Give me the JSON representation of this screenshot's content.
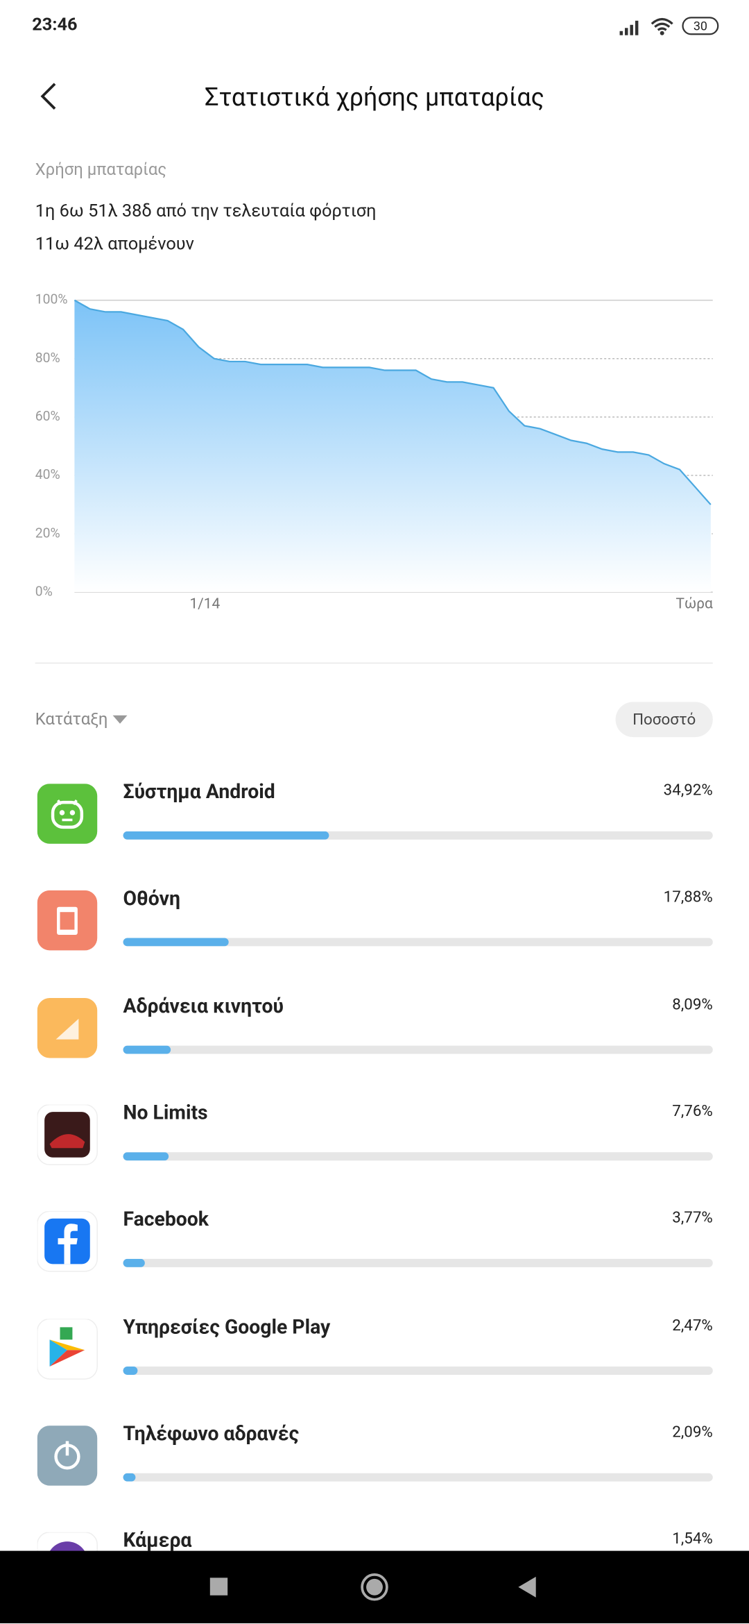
{
  "status_bar": {
    "time": "23:46",
    "battery": "30"
  },
  "header": {
    "title": "Στατιστικά χρήσης μπαταρίας"
  },
  "summary": {
    "label": "Χρήση μπαταρίας",
    "since_charge": "1η 6ω 51λ 38δ από την τελευταία φόρτιση",
    "remaining": "11ω 42λ απομένουν"
  },
  "chart_data": {
    "type": "area",
    "color": "#4aa8e0",
    "categories": [
      null,
      null,
      null,
      null,
      null,
      null,
      null,
      null,
      "1/14",
      null,
      null,
      null,
      null,
      null,
      null,
      null,
      null,
      null,
      null,
      null,
      null,
      null,
      null,
      null,
      null,
      null,
      null,
      null,
      null,
      null,
      null,
      null,
      null,
      null,
      null,
      null,
      null,
      null,
      null,
      null,
      null,
      "Τώρα"
    ],
    "values": [
      100,
      97,
      96,
      96,
      95,
      94,
      93,
      90,
      84,
      80,
      79,
      79,
      78,
      78,
      78,
      78,
      77,
      77,
      77,
      77,
      76,
      76,
      76,
      73,
      72,
      72,
      71,
      70,
      62,
      57,
      56,
      54,
      52,
      51,
      49,
      48,
      48,
      47,
      44,
      42,
      36,
      30
    ],
    "ylim": [
      0,
      100
    ],
    "yticks": [
      {
        "value": 0,
        "label": "0%"
      },
      {
        "value": 20,
        "label": "20%"
      },
      {
        "value": 40,
        "label": "40%"
      },
      {
        "value": 60,
        "label": "60%"
      },
      {
        "value": 80,
        "label": "80%"
      },
      {
        "value": 100,
        "label": "100%"
      }
    ],
    "grid": true
  },
  "sort": {
    "label": "Κατάταξη",
    "button": "Ποσοστό"
  },
  "apps": {
    "names": [
      "Σύστημα Android",
      "Οθόνη",
      "Αδράνεια κινητού",
      "No Limits",
      "Facebook",
      "Υπηρεσίες Google Play",
      "Τηλέφωνο αδρανές",
      "Κάμερα"
    ],
    "values": [
      34.92,
      17.88,
      8.09,
      7.76,
      3.77,
      2.47,
      2.09,
      1.54
    ],
    "value_labels": [
      "34,92%",
      "17,88%",
      "8,09%",
      "7,76%",
      "3,77%",
      "2,47%",
      "2,09%",
      "1,54%"
    ]
  }
}
